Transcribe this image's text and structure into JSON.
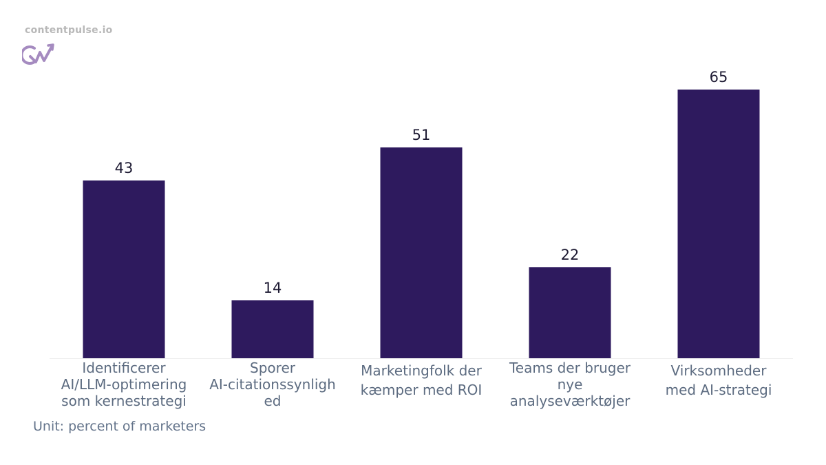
{
  "brand": {
    "site": "contentpulse.io",
    "logo_text": "CW"
  },
  "colors": {
    "bar": "#2e1a5e",
    "value_label": "#1e1b33",
    "category_label": "#5c6b80",
    "baseline": "#eeeeee",
    "logo": "#a58bc0"
  },
  "chart_data": {
    "type": "bar",
    "categories": [
      [
        "Identificerer",
        "AI/LLM-optimering",
        "som kernestrategi"
      ],
      [
        "Sporer",
        "AI-citationssynligh",
        "ed"
      ],
      [
        "Marketingfolk der",
        "kæmper med ROI"
      ],
      [
        "Teams der bruger",
        "nye",
        "analyseværktøjer"
      ],
      [
        "Virksomheder",
        "med AI-strategi"
      ]
    ],
    "values": [
      43,
      14,
      51,
      22,
      65
    ],
    "ylim": [
      0,
      70
    ],
    "grid": false,
    "legend": false,
    "unit_note": "Unit: percent of marketers"
  }
}
